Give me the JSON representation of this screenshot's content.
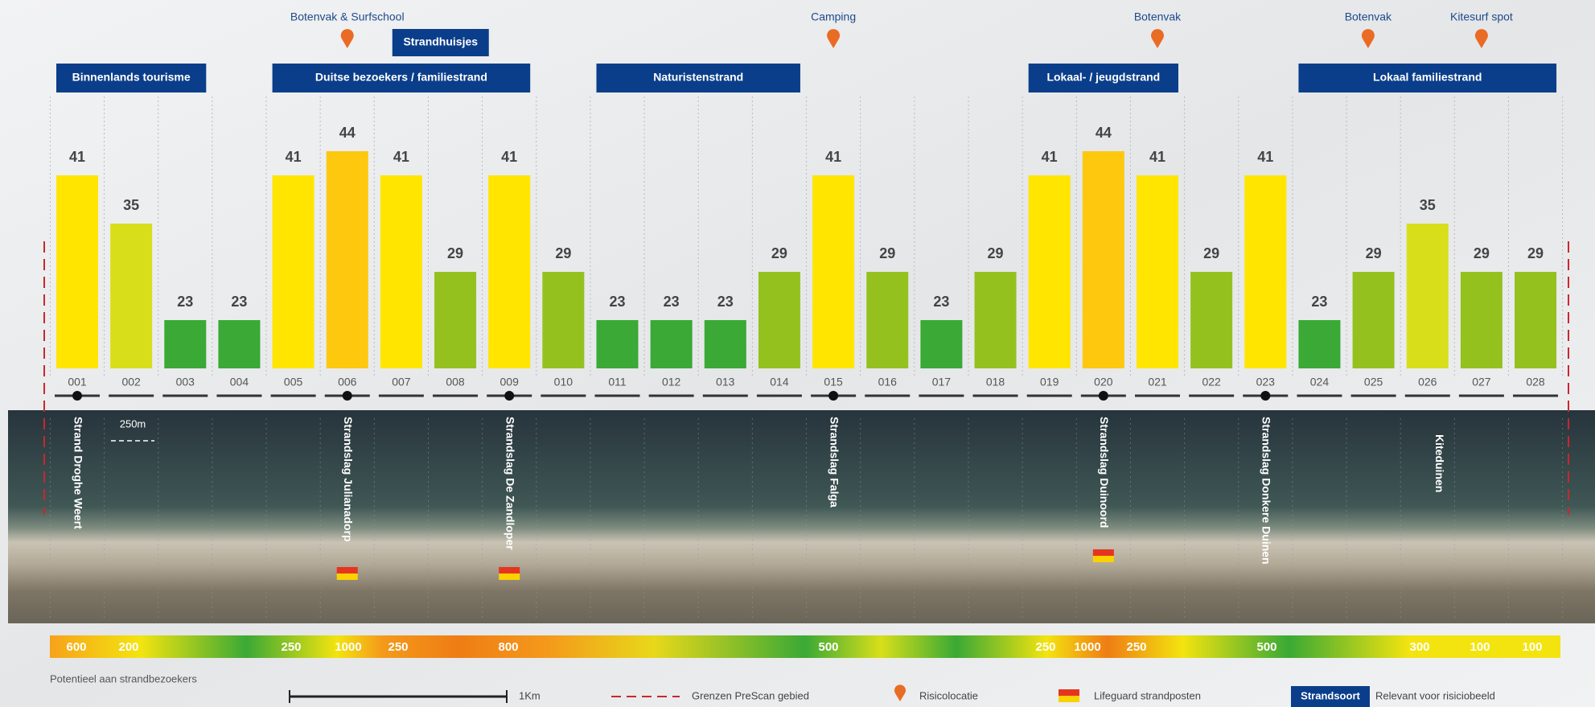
{
  "chart_data": {
    "type": "bar",
    "categories": [
      "001",
      "002",
      "003",
      "004",
      "005",
      "006",
      "007",
      "008",
      "009",
      "010",
      "011",
      "012",
      "013",
      "014",
      "015",
      "016",
      "017",
      "018",
      "019",
      "020",
      "021",
      "022",
      "023",
      "024",
      "025",
      "026",
      "027",
      "028"
    ],
    "values": [
      41,
      35,
      23,
      23,
      41,
      44,
      41,
      29,
      41,
      29,
      23,
      23,
      23,
      29,
      41,
      29,
      23,
      29,
      41,
      44,
      41,
      29,
      41,
      23,
      29,
      35,
      29,
      29
    ],
    "colors": [
      "#ffe500",
      "#d8df1a",
      "#3aa935",
      "#3aa935",
      "#ffe500",
      "#fdc80e",
      "#ffe500",
      "#95c11f",
      "#ffe500",
      "#95c11f",
      "#3aa935",
      "#3aa935",
      "#3aa935",
      "#95c11f",
      "#ffe500",
      "#95c11f",
      "#3aa935",
      "#95c11f",
      "#ffe500",
      "#fdc80e",
      "#ffe500",
      "#95c11f",
      "#ffe500",
      "#3aa935",
      "#95c11f",
      "#d8df1a",
      "#95c11f",
      "#95c11f"
    ],
    "ylim": [
      17,
      44
    ]
  },
  "beach_types": [
    "Binnenlands tourisme",
    "Duitse bezoekers / familiestrand",
    "Naturistenstrand",
    "Lokaal- / jeugdstrand",
    "Lokaal familiestrand"
  ],
  "extra_box": "Strandhuisjes",
  "risk_locations": [
    "Botenvak & Surfschool",
    "Camping",
    "Botenvak",
    "Botenvak",
    "Kitesurf spot"
  ],
  "beach_posts": [
    "Strand Droghe Weert",
    "Strandslag Julianadorp",
    "Strandslag De Zandloper",
    "Strandslag Falga",
    "Strandslag Duinoord",
    "Strandslag Donkere Duinen"
  ],
  "place_label": "Kiteduinen",
  "distance_label": "250m",
  "visitor_potential": {
    "title": "Potentieel aan strandbezoekers",
    "values": [
      600,
      200,
      250,
      1000,
      250,
      800,
      500,
      250,
      1000,
      250,
      500,
      300,
      100,
      100
    ]
  },
  "legend": {
    "scale": "1Km",
    "boundary": "Grenzen PreScan gebied",
    "risk": "Risicolocatie",
    "lifeguard": "Lifeguard strandposten",
    "box": "Strandsoort",
    "box_note": "Relevant voor risiciobeeld"
  }
}
